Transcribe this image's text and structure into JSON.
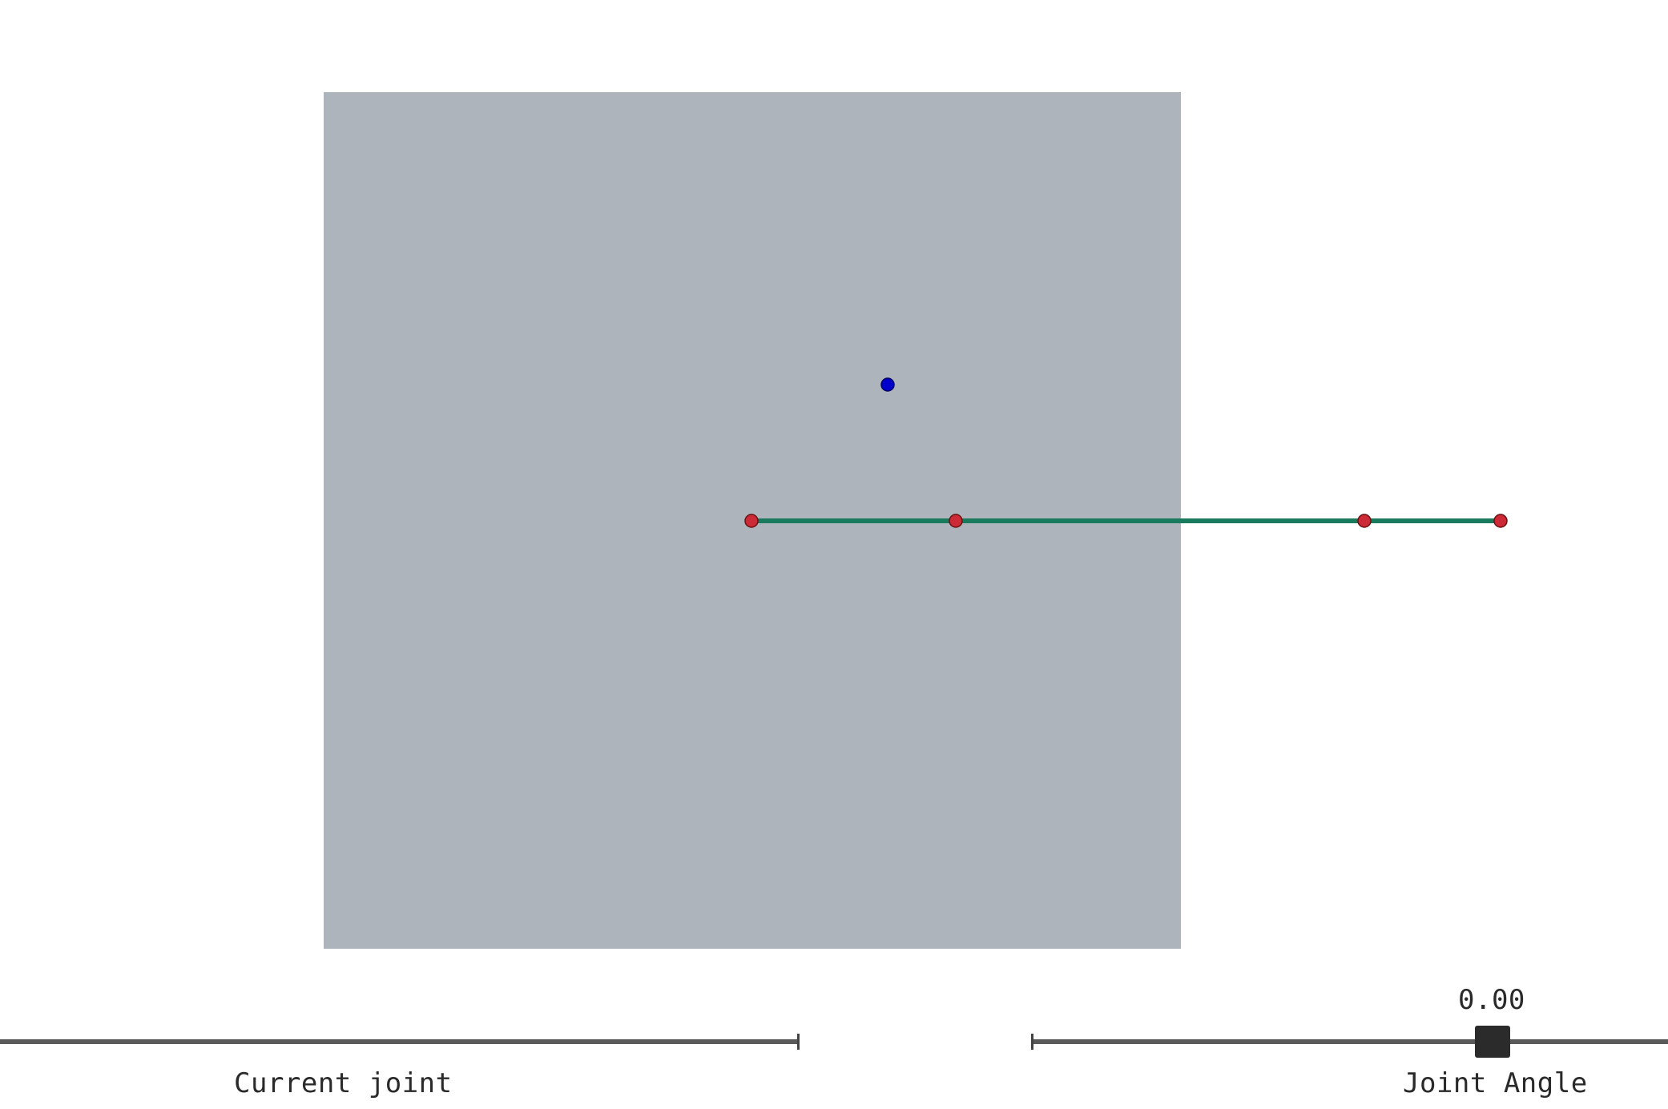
{
  "workspace": {
    "color": "#aeb4bb"
  },
  "target": {
    "color": "#0000cc"
  },
  "arm": {
    "link_color": "#1a7a5e",
    "joint_color": "#cc2a36",
    "joint_count": 4
  },
  "sliders": {
    "current_joint": {
      "label": "Current joint"
    },
    "joint_angle": {
      "label": "Joint Angle",
      "value": "0.00"
    }
  }
}
